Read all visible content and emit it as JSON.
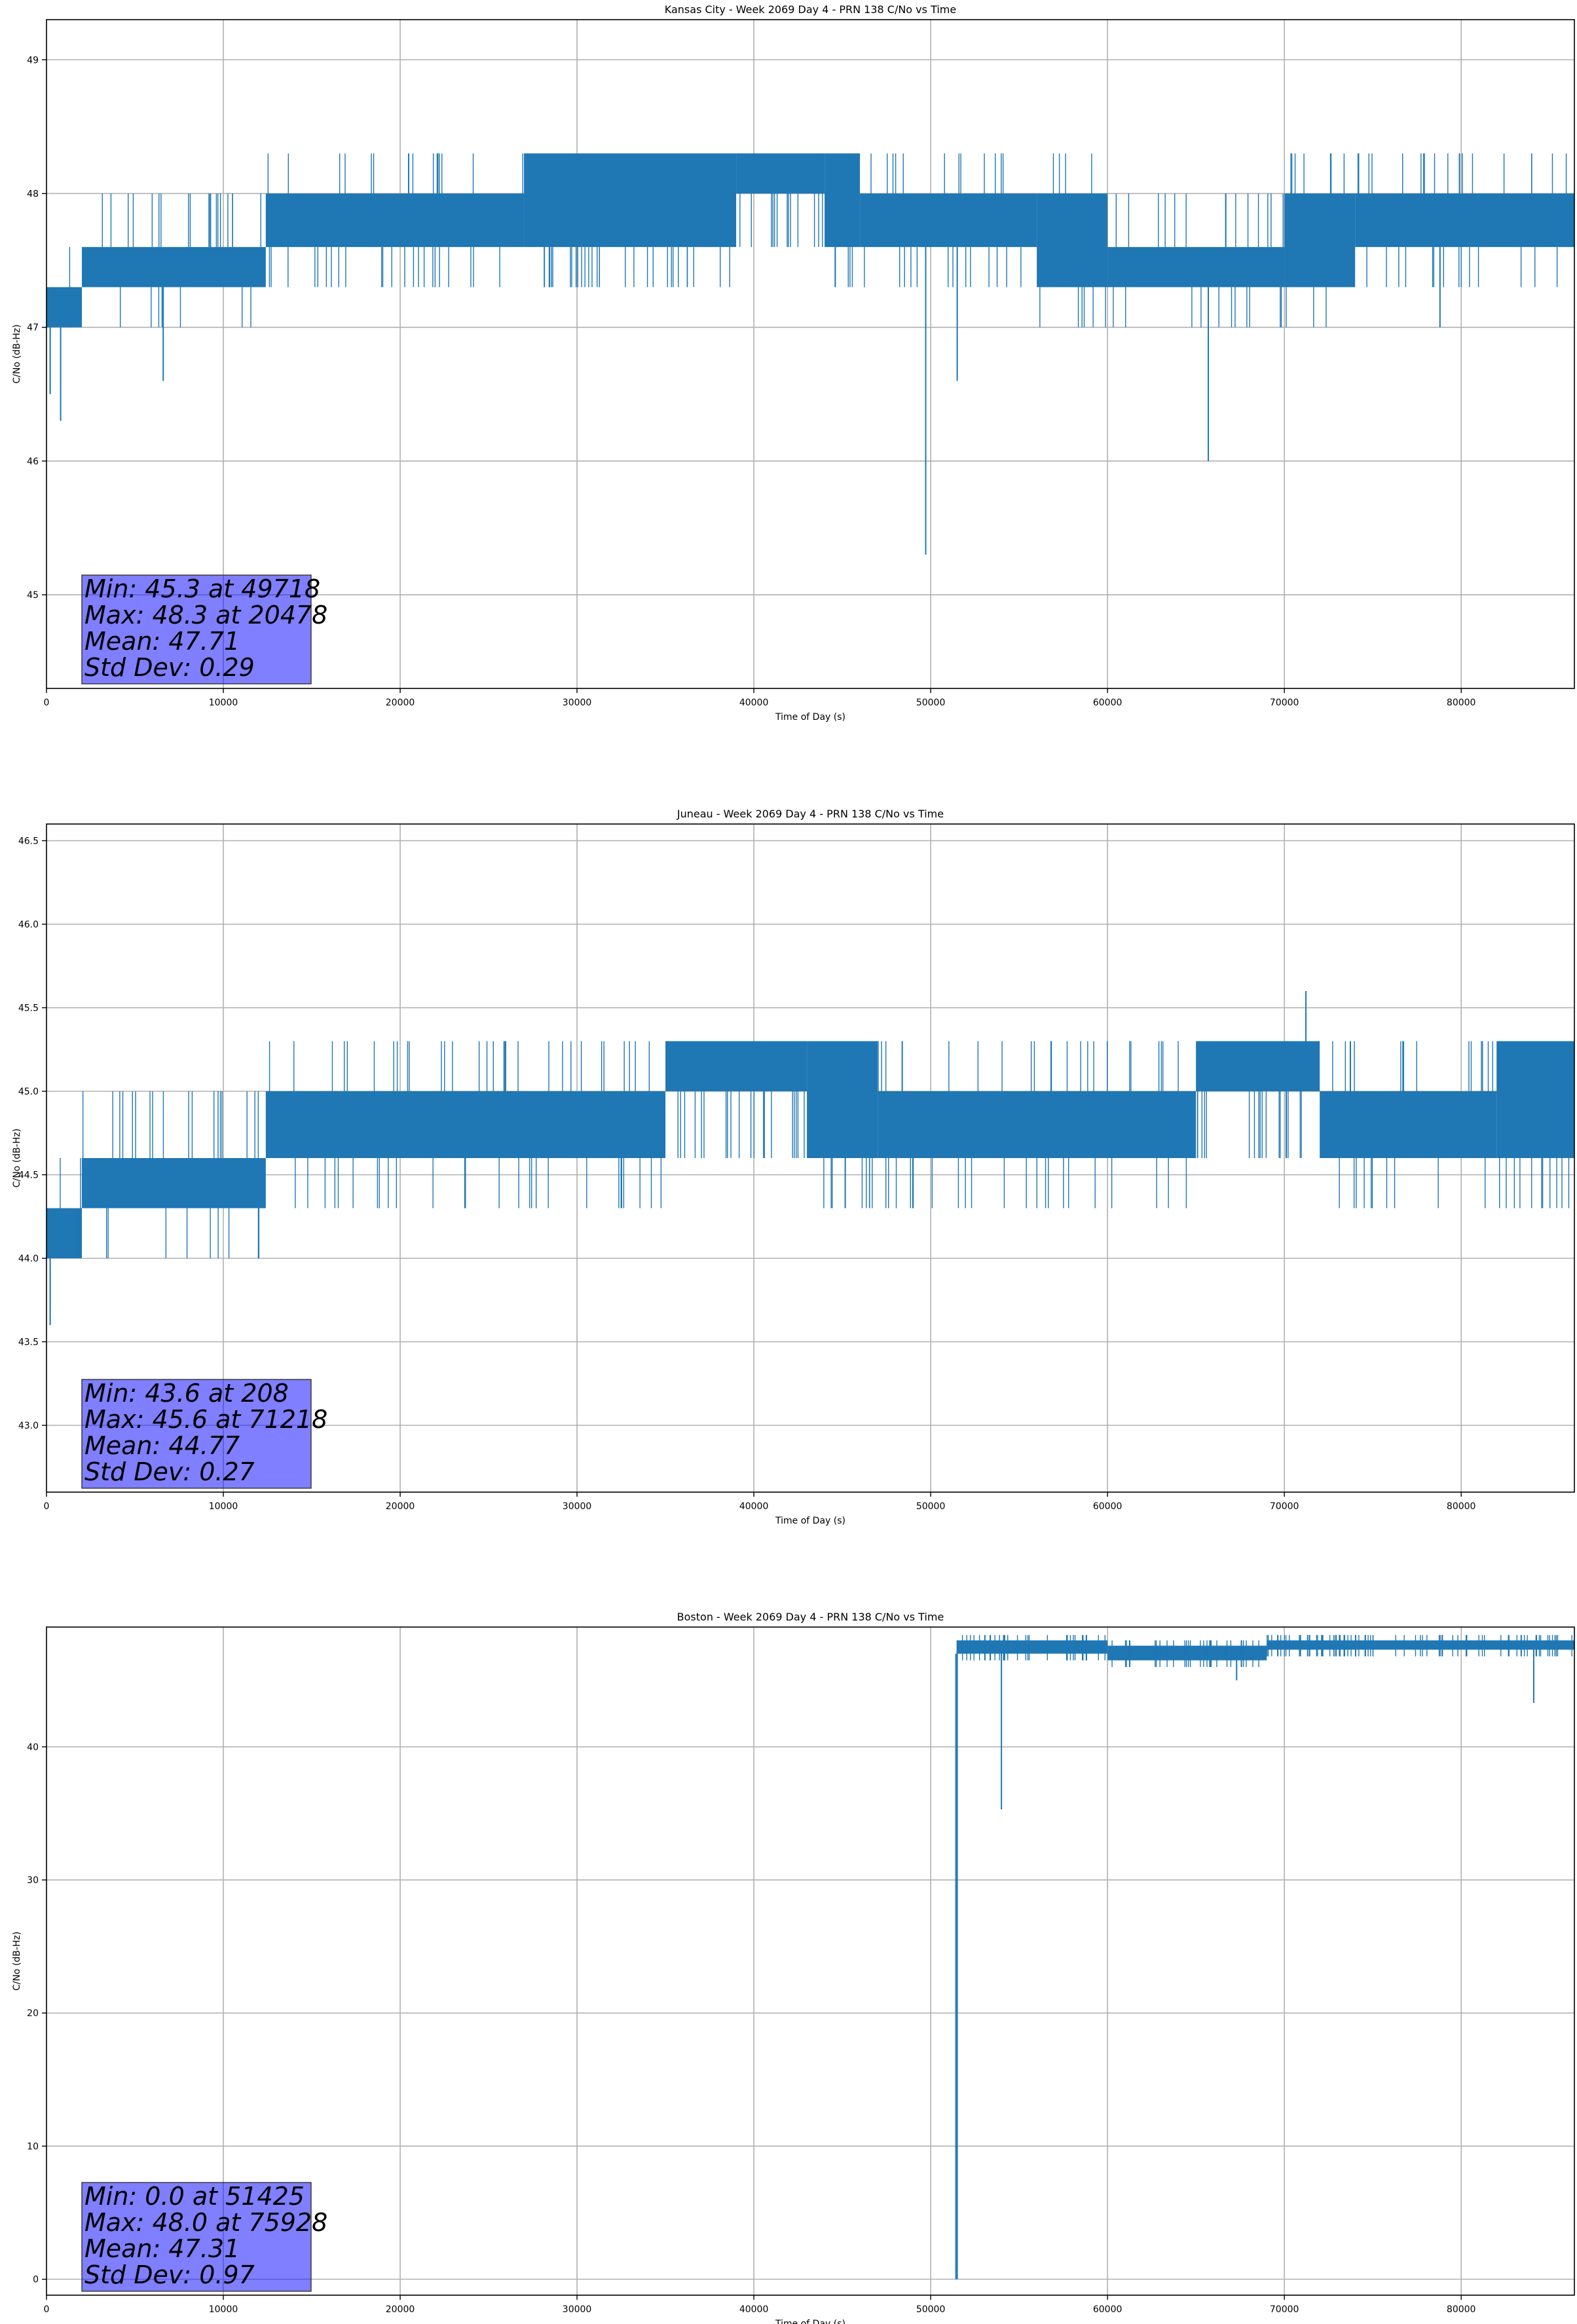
{
  "chart_data": [
    {
      "type": "line",
      "title": "Kansas City - Week 2069 Day 4 - PRN 138 C/No vs Time",
      "xlabel": "Time of Day (s)",
      "ylabel": "C/No (dB-Hz)",
      "xlim": [
        0,
        86400
      ],
      "ylim": [
        44.3,
        49.3
      ],
      "xticks": [
        0,
        10000,
        20000,
        30000,
        40000,
        50000,
        60000,
        70000,
        80000
      ],
      "yticks": [
        45,
        46,
        47,
        48,
        49
      ],
      "grid": true,
      "color": "#1f77b4",
      "levels": [
        47.0,
        47.3,
        47.6,
        48.0,
        48.3
      ],
      "envelope": [
        {
          "x0": 0,
          "x1": 2000,
          "lo": 47.0,
          "hi": 47.3
        },
        {
          "x0": 2000,
          "x1": 12400,
          "lo": 47.3,
          "hi": 47.6
        },
        {
          "x0": 12400,
          "x1": 27000,
          "lo": 47.6,
          "hi": 48.0
        },
        {
          "x0": 27000,
          "x1": 39000,
          "lo": 47.6,
          "hi": 48.3
        },
        {
          "x0": 39000,
          "x1": 44000,
          "lo": 48.0,
          "hi": 48.3
        },
        {
          "x0": 44000,
          "x1": 46000,
          "lo": 47.6,
          "hi": 48.3
        },
        {
          "x0": 46000,
          "x1": 56000,
          "lo": 47.6,
          "hi": 48.0
        },
        {
          "x0": 56000,
          "x1": 60000,
          "lo": 47.3,
          "hi": 48.0
        },
        {
          "x0": 60000,
          "x1": 70000,
          "lo": 47.3,
          "hi": 47.6
        },
        {
          "x0": 70000,
          "x1": 74000,
          "lo": 47.3,
          "hi": 48.0
        },
        {
          "x0": 74000,
          "x1": 86400,
          "lo": 47.6,
          "hi": 48.0
        }
      ],
      "spikes": [
        [
          208,
          46.5
        ],
        [
          800,
          46.3
        ],
        [
          6600,
          46.6
        ],
        [
          9200,
          48.0
        ],
        [
          20478,
          48.3
        ],
        [
          49718,
          45.3
        ],
        [
          51500,
          46.6
        ],
        [
          65700,
          46.0
        ],
        [
          78800,
          47.0
        ],
        [
          79900,
          48.3
        ]
      ],
      "stats": [
        "Min: 45.3 at 49718",
        "Max: 48.3 at 20478",
        "Mean: 47.71",
        "Std Dev: 0.29"
      ]
    },
    {
      "type": "line",
      "title": "Juneau - Week 2069 Day 4 - PRN 138 C/No vs Time",
      "xlabel": "Time of Day (s)",
      "ylabel": "C/No (dB-Hz)",
      "xlim": [
        0,
        86400
      ],
      "ylim": [
        42.6,
        46.6
      ],
      "xticks": [
        0,
        10000,
        20000,
        30000,
        40000,
        50000,
        60000,
        70000,
        80000
      ],
      "yticks": [
        43.0,
        43.5,
        44.0,
        44.5,
        45.0,
        45.5,
        46.0,
        46.5
      ],
      "grid": true,
      "color": "#1f77b4",
      "levels": [
        44.0,
        44.3,
        44.6,
        45.0,
        45.3
      ],
      "envelope": [
        {
          "x0": 0,
          "x1": 2000,
          "lo": 44.0,
          "hi": 44.3
        },
        {
          "x0": 2000,
          "x1": 12400,
          "lo": 44.3,
          "hi": 44.6
        },
        {
          "x0": 12400,
          "x1": 35000,
          "lo": 44.6,
          "hi": 45.0
        },
        {
          "x0": 35000,
          "x1": 43000,
          "lo": 45.0,
          "hi": 45.3
        },
        {
          "x0": 43000,
          "x1": 47000,
          "lo": 44.6,
          "hi": 45.3
        },
        {
          "x0": 47000,
          "x1": 65000,
          "lo": 44.6,
          "hi": 45.0
        },
        {
          "x0": 65000,
          "x1": 72000,
          "lo": 45.0,
          "hi": 45.3
        },
        {
          "x0": 72000,
          "x1": 82000,
          "lo": 44.6,
          "hi": 45.0
        },
        {
          "x0": 82000,
          "x1": 86400,
          "lo": 44.6,
          "hi": 45.3
        }
      ],
      "spikes": [
        [
          208,
          43.6
        ],
        [
          12000,
          44.0
        ],
        [
          71218,
          45.6
        ]
      ],
      "stats": [
        "Min: 43.6 at 208",
        "Max: 45.6 at 71218",
        "Mean: 44.77",
        "Std Dev: 0.27"
      ]
    },
    {
      "type": "line",
      "title": "Boston - Week 2069 Day 4 - PRN 138 C/No vs Time",
      "xlabel": "Time of Day (s)",
      "ylabel": "C/No (dB-Hz)",
      "xlim": [
        0,
        86400
      ],
      "ylim": [
        -1.2,
        49.0
      ],
      "xticks": [
        0,
        10000,
        20000,
        30000,
        40000,
        50000,
        60000,
        70000,
        80000
      ],
      "yticks": [
        0,
        10,
        20,
        30,
        40
      ],
      "grid": true,
      "color": "#1f77b4",
      "levels": [],
      "envelope": [
        {
          "x0": 51500,
          "x1": 60000,
          "lo": 47.0,
          "hi": 48.0
        },
        {
          "x0": 60000,
          "x1": 69000,
          "lo": 46.5,
          "hi": 47.6
        },
        {
          "x0": 69000,
          "x1": 86400,
          "lo": 47.3,
          "hi": 48.0
        }
      ],
      "spikes": [
        [
          51425,
          0.0
        ],
        [
          54000,
          35.3
        ],
        [
          67300,
          45.0
        ],
        [
          75928,
          48.0
        ],
        [
          84100,
          43.3
        ]
      ],
      "stats": [
        "Min: 0.0 at 51425",
        "Max: 48.0 at 75928",
        "Mean: 47.31",
        "Std Dev: 0.97"
      ]
    }
  ]
}
